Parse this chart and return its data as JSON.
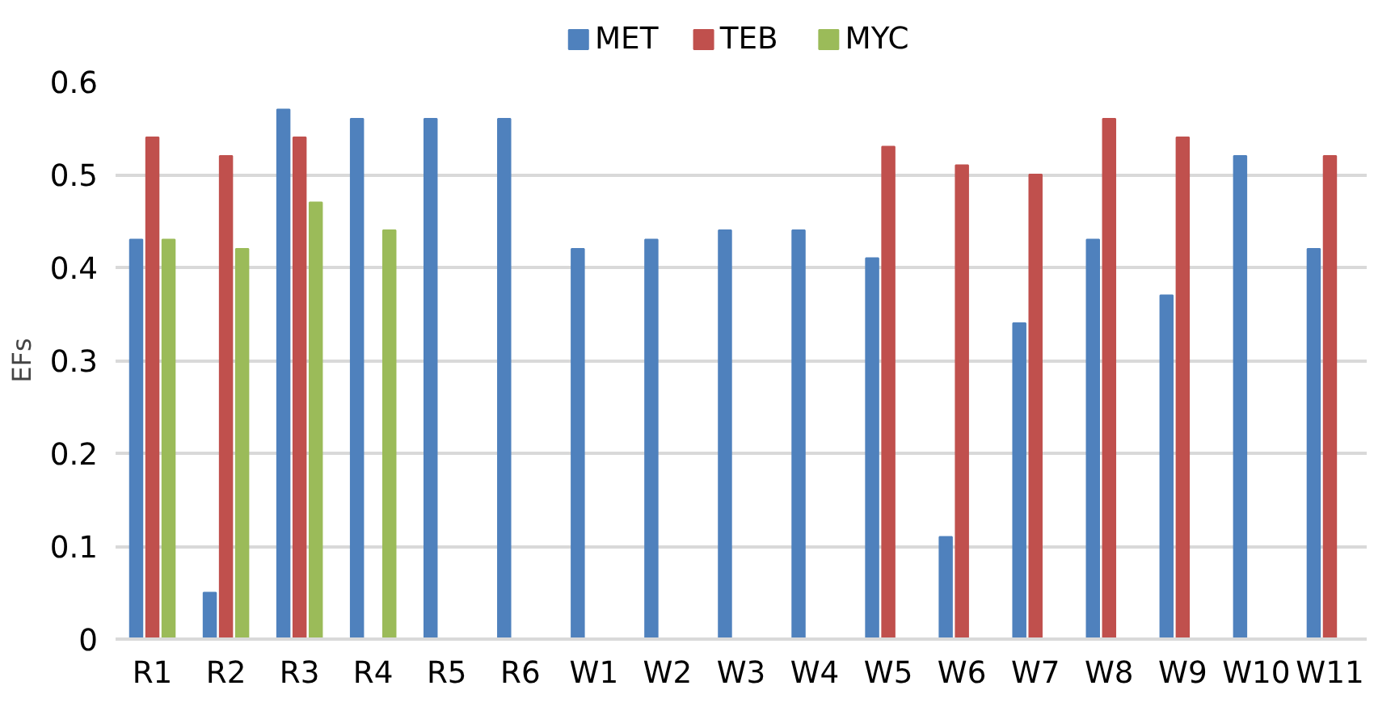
{
  "chart_data": {
    "type": "bar",
    "ylabel": "EFs",
    "categories": [
      "R1",
      "R2",
      "R3",
      "R4",
      "R5",
      "R6",
      "W1",
      "W2",
      "W3",
      "W4",
      "W5",
      "W6",
      "W7",
      "W8",
      "W9",
      "W10",
      "W11"
    ],
    "series": [
      {
        "name": "MET",
        "color": "#4f81bd",
        "values": [
          0.43,
          0.05,
          0.57,
          0.56,
          0.56,
          0.56,
          0.42,
          0.43,
          0.44,
          0.44,
          0.41,
          0.11,
          0.34,
          0.43,
          0.37,
          0.52,
          0.42
        ]
      },
      {
        "name": "TEB",
        "color": "#c0504d",
        "values": [
          0.54,
          0.52,
          0.54,
          null,
          null,
          null,
          null,
          null,
          null,
          null,
          0.53,
          0.51,
          0.5,
          0.56,
          0.54,
          null,
          0.52
        ]
      },
      {
        "name": "MYC",
        "color": "#9bbb59",
        "values": [
          0.43,
          0.42,
          0.47,
          0.44,
          null,
          null,
          null,
          null,
          null,
          null,
          null,
          null,
          null,
          null,
          null,
          null,
          null
        ]
      }
    ],
    "ylim": [
      0,
      0.6
    ],
    "yticks": [
      0,
      0.1,
      0.2,
      0.3,
      0.4,
      0.5,
      0.6
    ],
    "grid": "y",
    "legend": "top"
  }
}
